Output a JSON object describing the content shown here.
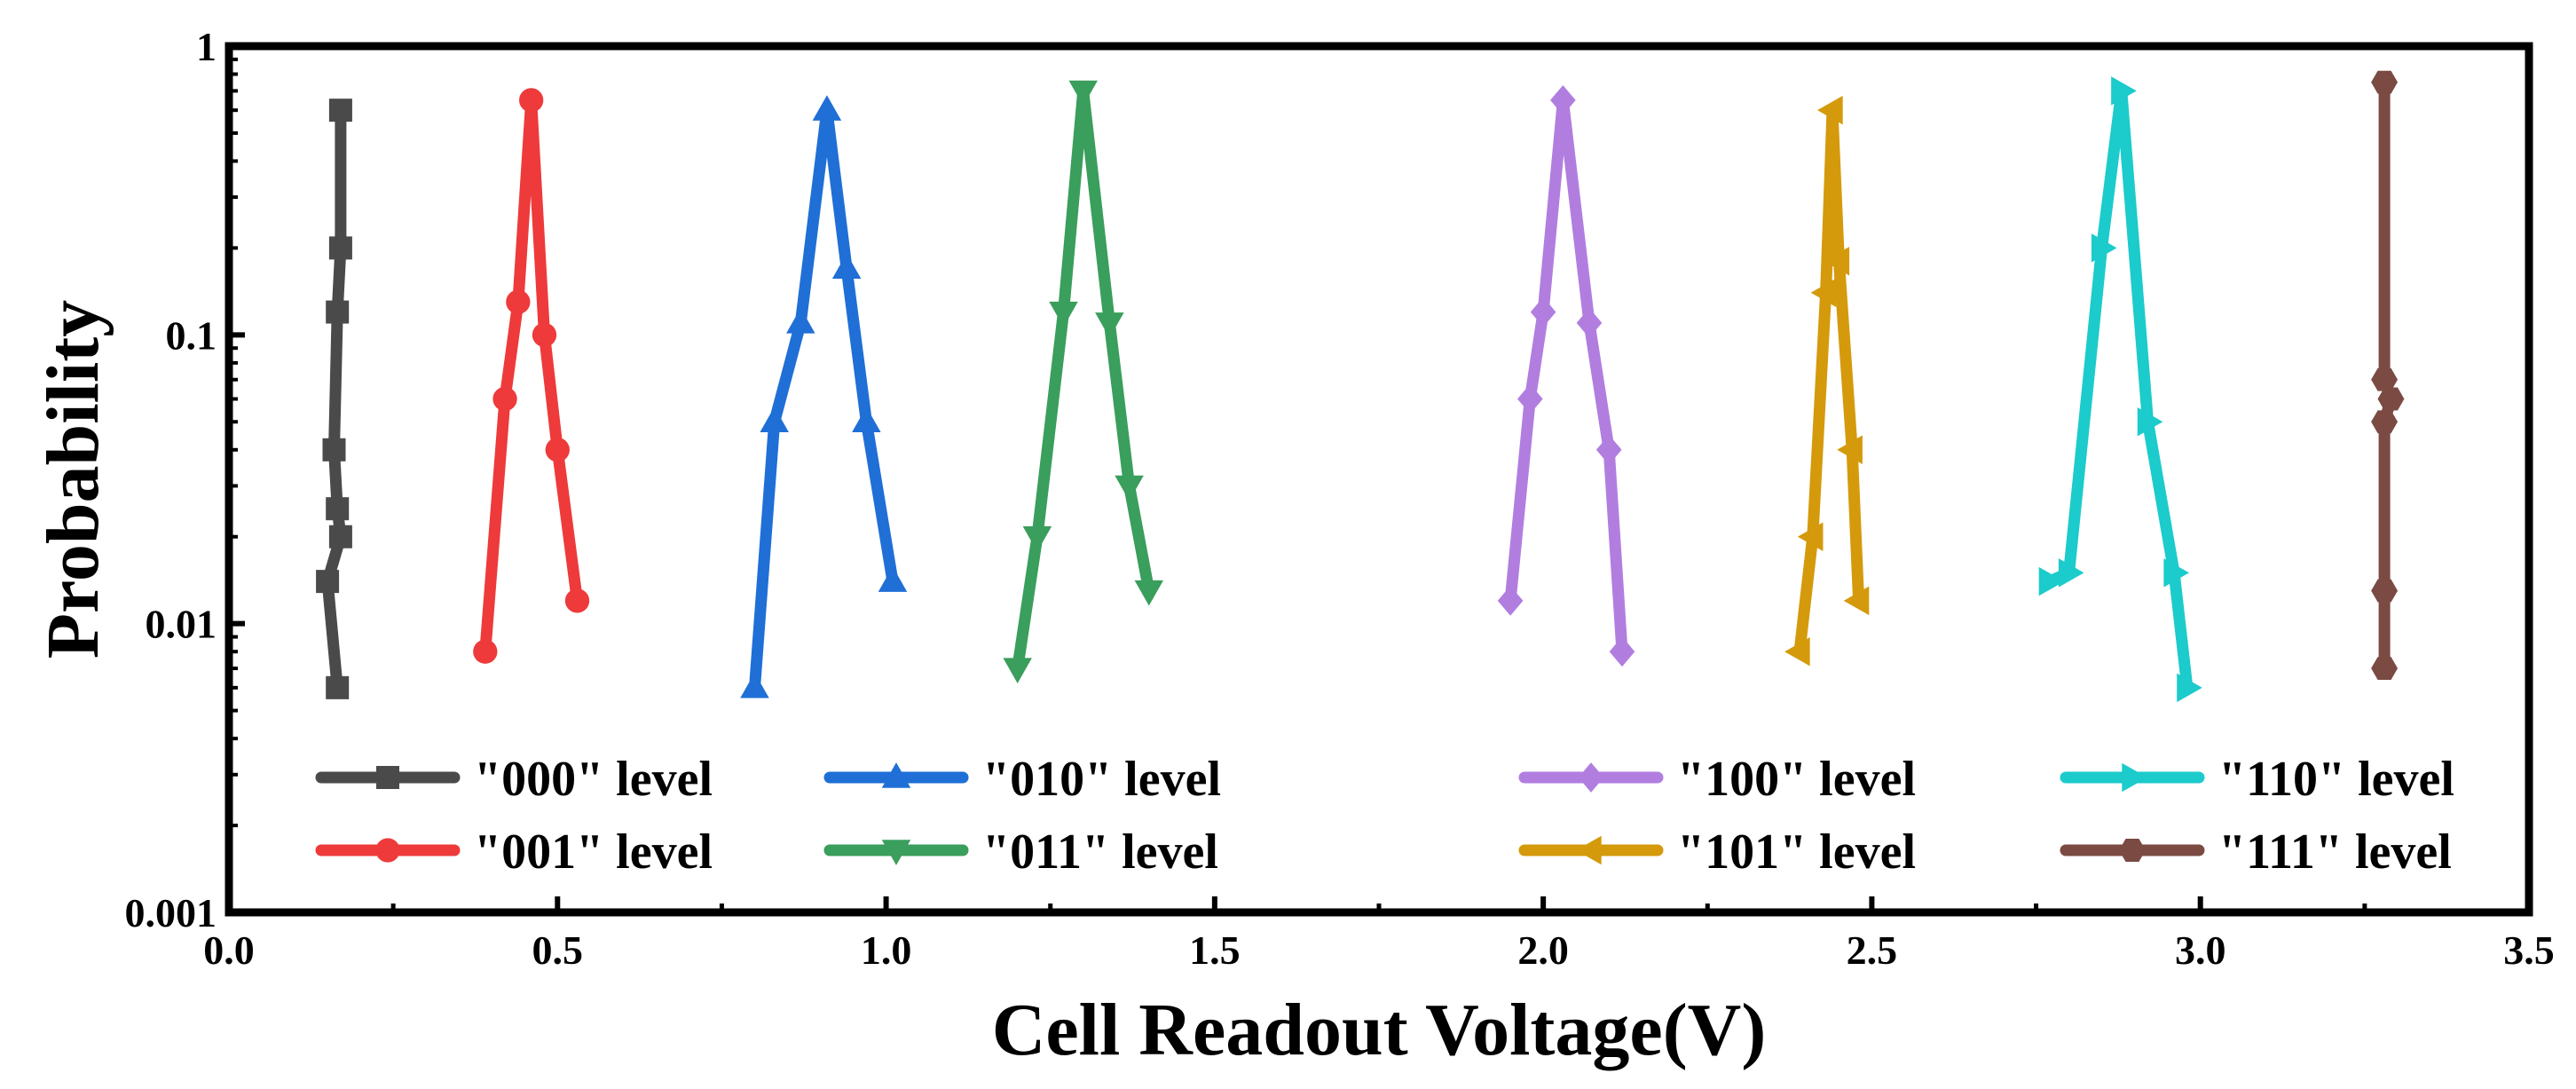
{
  "chart_data": {
    "type": "line",
    "title": "",
    "xlabel": "Cell Readout Voltage(V)",
    "ylabel": "Probability",
    "xlim": [
      0.0,
      3.5
    ],
    "ylim": [
      0.001,
      1
    ],
    "yscale": "log",
    "grid": false,
    "legend_position": "bottom, inside plot, 4 columns",
    "x_ticks": [
      0.0,
      0.5,
      1.0,
      1.5,
      2.0,
      2.5,
      3.0,
      3.5
    ],
    "x_tick_labels": [
      "0.0",
      "0.5",
      "1.0",
      "1.5",
      "2.0",
      "2.5",
      "3.0",
      "3.5"
    ],
    "y_ticks": [
      0.001,
      0.01,
      0.1,
      1
    ],
    "y_tick_labels": [
      "0.001",
      "0.01",
      "0.1",
      "1"
    ],
    "series": [
      {
        "name": "\"000\" level",
        "color": "#4a4a4a",
        "marker": "square",
        "x": [
          0.17,
          0.17,
          0.165,
          0.16,
          0.165,
          0.17,
          0.15,
          0.165
        ],
        "y": [
          0.6,
          0.2,
          0.12,
          0.04,
          0.025,
          0.02,
          0.014,
          0.006
        ]
      },
      {
        "name": "\"001\" level",
        "color": "#ee3a3a",
        "marker": "circle",
        "x": [
          0.39,
          0.42,
          0.44,
          0.46,
          0.48,
          0.5,
          0.53
        ],
        "y": [
          0.008,
          0.06,
          0.13,
          0.65,
          0.1,
          0.04,
          0.012
        ]
      },
      {
        "name": "\"010\" level",
        "color": "#1f6fd6",
        "marker": "triangle-up",
        "x": [
          0.8,
          0.83,
          0.87,
          0.91,
          0.94,
          0.97,
          1.01
        ],
        "y": [
          0.006,
          0.05,
          0.11,
          0.6,
          0.17,
          0.05,
          0.014
        ]
      },
      {
        "name": "\"011\" level",
        "color": "#3a9e5c",
        "marker": "triangle-down",
        "x": [
          1.2,
          1.23,
          1.27,
          1.3,
          1.34,
          1.37,
          1.4
        ],
        "y": [
          0.007,
          0.02,
          0.12,
          0.7,
          0.11,
          0.03,
          0.013
        ]
      },
      {
        "name": "\"100\" level",
        "color": "#b17ee0",
        "marker": "diamond",
        "x": [
          1.95,
          1.98,
          2.0,
          2.03,
          2.07,
          2.1,
          2.12
        ],
        "y": [
          0.012,
          0.06,
          0.12,
          0.65,
          0.11,
          0.04,
          0.008
        ]
      },
      {
        "name": "\"101\" level",
        "color": "#d49a0c",
        "marker": "triangle-left",
        "x": [
          2.39,
          2.41,
          2.43,
          2.44,
          2.45,
          2.47,
          2.48
        ],
        "y": [
          0.008,
          0.02,
          0.14,
          0.6,
          0.18,
          0.04,
          0.012
        ]
      },
      {
        "name": "\"110\" level",
        "color": "#1ccbcb",
        "marker": "triangle-right",
        "x": [
          2.77,
          2.8,
          2.85,
          2.88,
          2.92,
          2.96,
          2.98
        ],
        "y": [
          0.014,
          0.015,
          0.2,
          0.7,
          0.05,
          0.015,
          0.006
        ]
      },
      {
        "name": "\"111\" level",
        "color": "#7a4a43",
        "marker": "hexagon",
        "x": [
          3.28,
          3.28,
          3.29,
          3.28,
          3.28,
          3.28
        ],
        "y": [
          0.75,
          0.07,
          0.06,
          0.05,
          0.013,
          0.007
        ]
      }
    ]
  }
}
